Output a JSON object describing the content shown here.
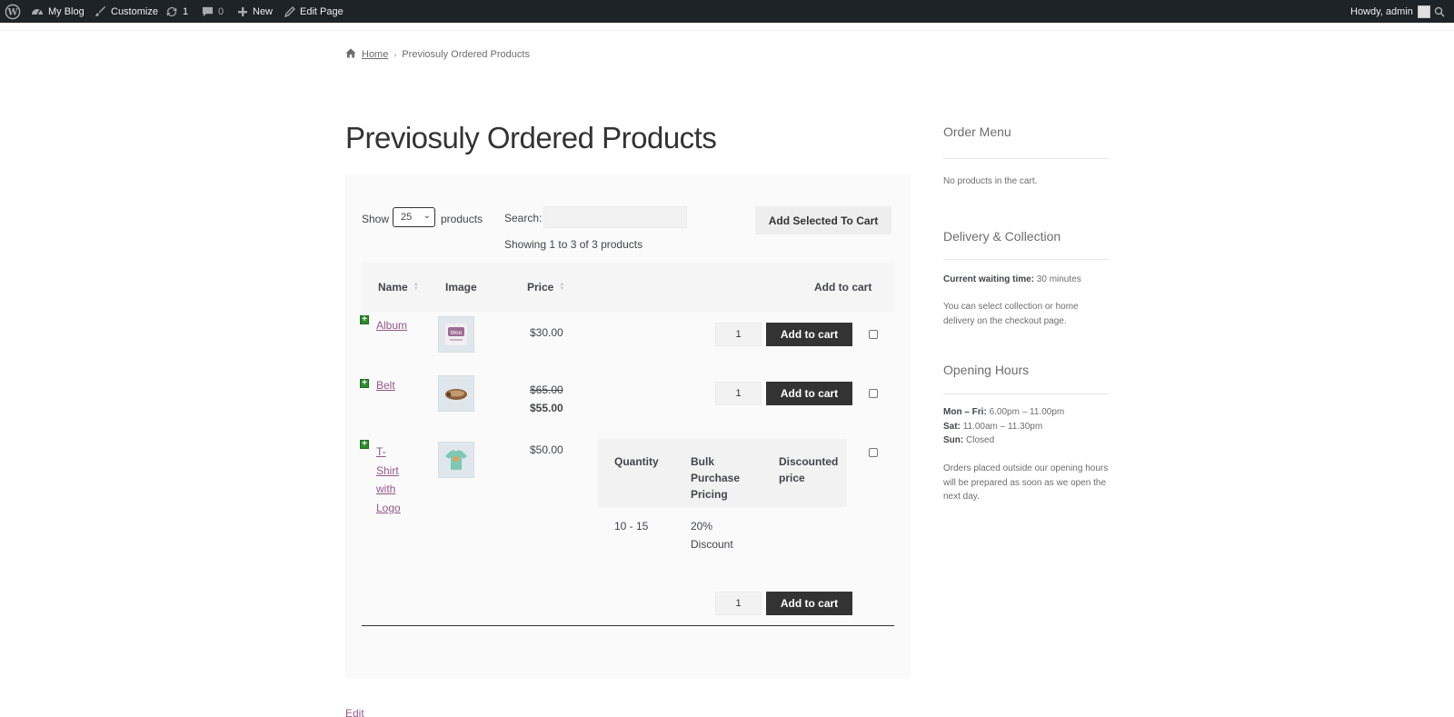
{
  "adminbar": {
    "site_name": "My Blog",
    "customize": "Customize",
    "updates_count": "1",
    "comments_count": "0",
    "new_label": "New",
    "edit_page": "Edit Page",
    "howdy": "Howdy, admin"
  },
  "breadcrumb": {
    "home": "Home",
    "current": "Previosuly Ordered Products"
  },
  "page": {
    "title": "Previosuly Ordered Products",
    "edit_link": "Edit"
  },
  "table_controls": {
    "show_label": "Show",
    "page_length": "25",
    "products_label": "products",
    "search_label": "Search:",
    "search_value": "",
    "info": "Showing 1 to 3 of 3 products",
    "bulk_add_label": "Add Selected To Cart"
  },
  "table": {
    "columns": [
      "Name",
      "Image",
      "Price",
      "Add to cart"
    ],
    "rows": [
      {
        "name": "Album",
        "price": "$30.00",
        "qty": "1",
        "button": "Add to cart",
        "image_icon": "album-thumbnail"
      },
      {
        "name": "Belt",
        "price_regular": "$65.00",
        "price_sale": "$55.00",
        "qty": "1",
        "button": "Add to cart",
        "image_icon": "belt-thumbnail"
      },
      {
        "name_lines": [
          "T-",
          "Shirt",
          "with",
          "Logo"
        ],
        "price": "$50.00",
        "qty": "1",
        "button": "Add to cart",
        "image_icon": "tshirt-thumbnail"
      }
    ],
    "bulk_pricing": {
      "headers": {
        "quantity": "Quantity",
        "bulk_lines": [
          "Bulk",
          "Purchase",
          "Pricing"
        ],
        "discount_lines": [
          "Discounted",
          "price"
        ]
      },
      "row": {
        "range": "10 - 15",
        "pricing_lines": [
          "20%",
          "Discount"
        ]
      }
    }
  },
  "sidebar": {
    "order_menu": {
      "title": "Order Menu",
      "text": "No products in the cart."
    },
    "delivery": {
      "title": "Delivery & Collection",
      "wait_label": "Current waiting time:",
      "wait_value": "30 minutes",
      "text": "You can select collection or home delivery on the checkout page."
    },
    "hours": {
      "title": "Opening Hours",
      "lines": [
        {
          "day": "Mon – Fri:",
          "time": "6.00pm – 11.00pm"
        },
        {
          "day": "Sat:",
          "time": "11.00am – 11.30pm"
        },
        {
          "day": "Sun:",
          "time": "Closed"
        }
      ],
      "note": "Orders placed outside our opening hours will be prepared as soon as we open the next day."
    }
  }
}
